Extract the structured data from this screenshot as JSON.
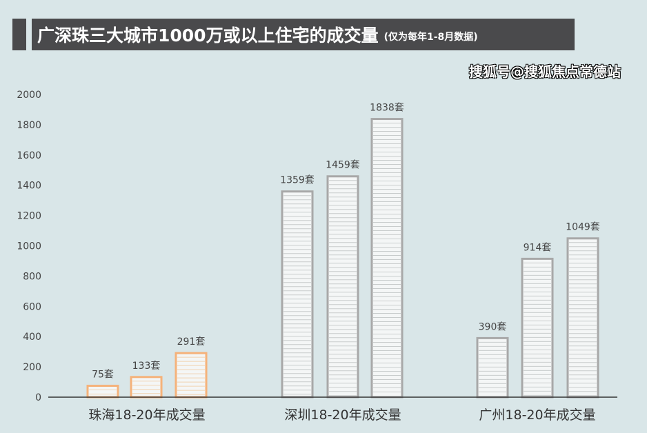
{
  "title": "广深珠三大城市1000万或以上住宅的成交量",
  "subtitle": "(仅为每年1-8月数据)",
  "watermark": "搜狐号@搜狐焦点常德站",
  "chart_data": {
    "type": "bar",
    "title": "广深珠三大城市1000万或以上住宅的成交量",
    "subtitle": "(仅为每年1-8月数据)",
    "ylim": [
      0,
      2000
    ],
    "yticks": [
      0,
      200,
      400,
      600,
      800,
      1000,
      1200,
      1400,
      1600,
      1800,
      2000
    ],
    "groups": [
      {
        "label": "珠海18-20年成交量",
        "values": [
          75,
          133,
          291
        ],
        "data_labels": [
          "75套",
          "133套",
          "291套"
        ],
        "color": "#f5b27a"
      },
      {
        "label": "深圳18-20年成交量",
        "values": [
          1359,
          1459,
          1838
        ],
        "data_labels": [
          "1359套",
          "1459套",
          "1838套"
        ],
        "color": "#a8a8a8"
      },
      {
        "label": "广州18-20年成交量",
        "values": [
          390,
          914,
          1049
        ],
        "data_labels": [
          "390套",
          "914套",
          "1049套"
        ],
        "color": "#a8a8a8"
      }
    ],
    "grid": false
  }
}
